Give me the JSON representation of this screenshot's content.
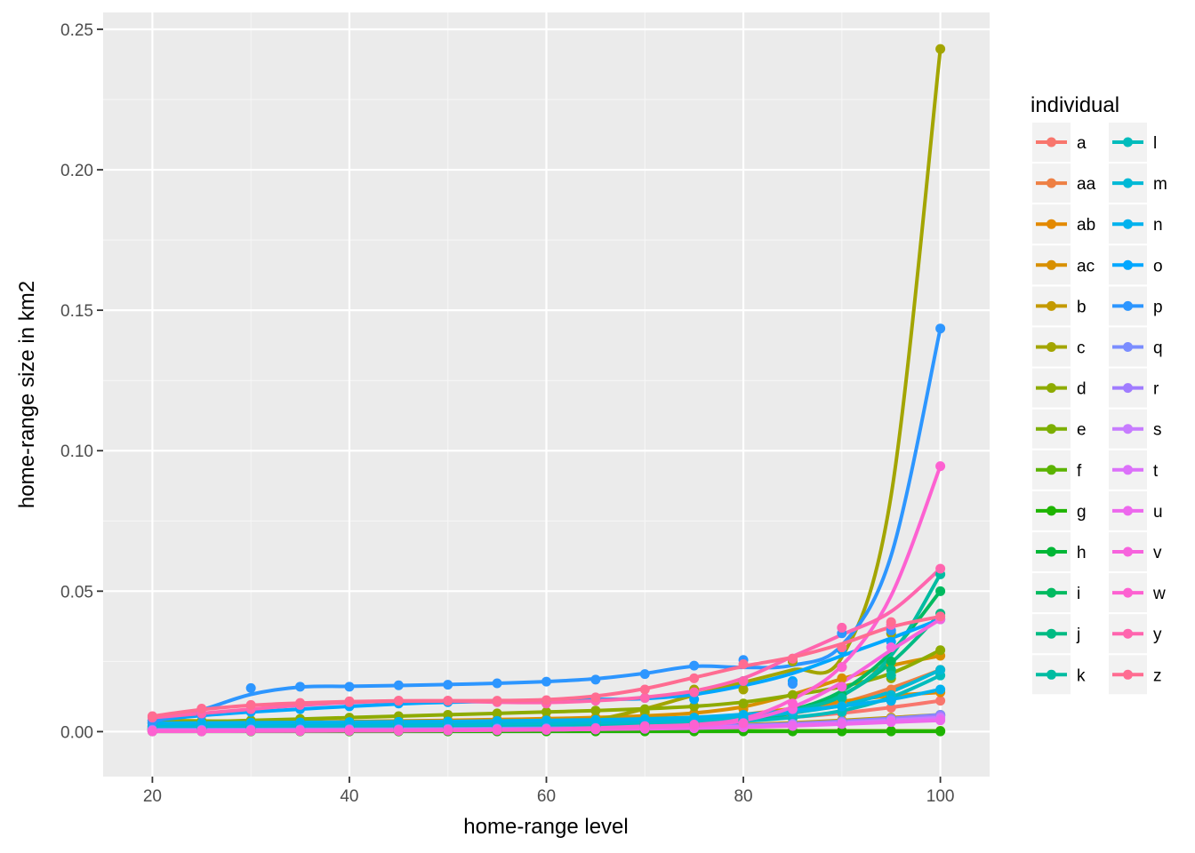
{
  "chart_data": {
    "type": "line",
    "subtype": "scatter with smoothed trend lines",
    "title": "",
    "xlabel": "home-range level",
    "ylabel": "home-range size in km2",
    "xlim": [
      15,
      105
    ],
    "ylim": [
      -0.016,
      0.256
    ],
    "x_ticks": [
      20,
      40,
      60,
      80,
      100
    ],
    "y_ticks": [
      0.0,
      0.05,
      0.1,
      0.15,
      0.2,
      0.25
    ],
    "x_tick_labels": [
      "20",
      "40",
      "60",
      "80",
      "100"
    ],
    "y_tick_labels": [
      "0.00",
      "0.05",
      "0.10",
      "0.15",
      "0.20",
      "0.25"
    ],
    "grid": true,
    "legend": {
      "title": "individual",
      "placement": "right",
      "columns": 2
    },
    "x": [
      20,
      25,
      30,
      35,
      40,
      45,
      50,
      55,
      60,
      65,
      70,
      75,
      80,
      85,
      90,
      95,
      100
    ],
    "series": [
      {
        "name": "a",
        "color": "#F8766D",
        "values": [
          0.0015,
          0.0016,
          0.0017,
          0.0018,
          0.0019,
          0.002,
          0.0021,
          0.0023,
          0.0025,
          0.0027,
          0.003,
          0.0034,
          0.004,
          0.005,
          0.0065,
          0.0085,
          0.011
        ]
      },
      {
        "name": "aa",
        "color": "#EE8044",
        "values": [
          0.001,
          0.0011,
          0.0012,
          0.0013,
          0.0014,
          0.0015,
          0.0016,
          0.0018,
          0.002,
          0.0022,
          0.0025,
          0.003,
          0.004,
          0.006,
          0.01,
          0.015,
          0.022
        ]
      },
      {
        "name": "ab",
        "color": "#E38900",
        "values": [
          0.002,
          0.0021,
          0.0022,
          0.0023,
          0.0024,
          0.0025,
          0.0026,
          0.0028,
          0.003,
          0.0033,
          0.0037,
          0.0045,
          0.006,
          0.008,
          0.011,
          0.013,
          0.014
        ]
      },
      {
        "name": "ac",
        "color": "#D89000",
        "values": [
          0.003,
          0.0031,
          0.0032,
          0.0034,
          0.0036,
          0.0038,
          0.004,
          0.0043,
          0.0046,
          0.005,
          0.0055,
          0.0065,
          0.008,
          0.013,
          0.019,
          0.024,
          0.027
        ]
      },
      {
        "name": "b",
        "color": "#C49A00",
        "values": [
          0.001,
          0.001,
          0.0011,
          0.0011,
          0.0012,
          0.0012,
          0.0013,
          0.0014,
          0.0015,
          0.0016,
          0.0018,
          0.002,
          0.0025,
          0.003,
          0.004,
          0.005,
          0.006
        ]
      },
      {
        "name": "c",
        "color": "#A3A500",
        "values": [
          0.004,
          0.0038,
          0.0036,
          0.0034,
          0.0032,
          0.003,
          0.0028,
          0.0028,
          0.003,
          0.0035,
          0.007,
          0.015,
          0.015,
          0.025,
          0.023,
          0.035,
          0.243
        ]
      },
      {
        "name": "d",
        "color": "#8EAB00",
        "values": [
          0.003,
          0.0035,
          0.004,
          0.0045,
          0.005,
          0.0055,
          0.006,
          0.0065,
          0.007,
          0.0075,
          0.008,
          0.009,
          0.01,
          0.013,
          0.016,
          0.019,
          0.029
        ]
      },
      {
        "name": "e",
        "color": "#7CAE00",
        "values": [
          0.0003,
          0.0003,
          0.0003,
          0.0003,
          0.0003,
          0.0003,
          0.0003,
          0.0003,
          0.0003,
          0.0003,
          0.0003,
          0.0003,
          0.0003,
          0.0003,
          0.0003,
          0.0003,
          0.0003
        ]
      },
      {
        "name": "f",
        "color": "#5BB300",
        "values": [
          0.0002,
          0.0002,
          0.0002,
          0.0002,
          0.0002,
          0.0002,
          0.0002,
          0.0002,
          0.0002,
          0.0002,
          0.0002,
          0.0002,
          0.0002,
          0.0002,
          0.0002,
          0.0002,
          0.0002
        ]
      },
      {
        "name": "g",
        "color": "#1EB400",
        "values": [
          0.0001,
          0.0001,
          0.0001,
          0.0001,
          0.0001,
          0.0001,
          0.0001,
          0.0001,
          0.0001,
          0.0001,
          0.0001,
          0.0001,
          0.0001,
          0.0001,
          0.0001,
          0.0001,
          0.0001
        ]
      },
      {
        "name": "h",
        "color": "#00B636",
        "values": [
          0.0006,
          0.0006,
          0.0007,
          0.0007,
          0.0008,
          0.0008,
          0.0009,
          0.001,
          0.0011,
          0.0012,
          0.0014,
          0.0016,
          0.002,
          0.0026,
          0.0034,
          0.0044,
          0.0058
        ]
      },
      {
        "name": "i",
        "color": "#00BA60",
        "values": [
          0.0012,
          0.0013,
          0.0014,
          0.0015,
          0.0016,
          0.0017,
          0.0018,
          0.002,
          0.0022,
          0.0024,
          0.0027,
          0.0032,
          0.004,
          0.007,
          0.013,
          0.025,
          0.05
        ]
      },
      {
        "name": "j",
        "color": "#00BB83",
        "values": [
          0.0008,
          0.0009,
          0.001,
          0.0011,
          0.0012,
          0.0013,
          0.0014,
          0.0015,
          0.0017,
          0.0019,
          0.0022,
          0.0026,
          0.0032,
          0.006,
          0.012,
          0.022,
          0.042
        ]
      },
      {
        "name": "k",
        "color": "#00BCA1",
        "values": [
          0.0015,
          0.0016,
          0.0017,
          0.0018,
          0.0019,
          0.002,
          0.0021,
          0.0023,
          0.0025,
          0.0028,
          0.0032,
          0.0038,
          0.0045,
          0.007,
          0.012,
          0.02,
          0.056
        ]
      },
      {
        "name": "l",
        "color": "#00BCBC",
        "values": [
          0.001,
          0.0011,
          0.0012,
          0.0013,
          0.0014,
          0.0015,
          0.0016,
          0.0018,
          0.002,
          0.0022,
          0.0025,
          0.003,
          0.0036,
          0.0048,
          0.007,
          0.011,
          0.02
        ]
      },
      {
        "name": "m",
        "color": "#00B9D6",
        "values": [
          0.002,
          0.0021,
          0.0022,
          0.0023,
          0.0024,
          0.0025,
          0.0026,
          0.0028,
          0.003,
          0.0032,
          0.0035,
          0.004,
          0.005,
          0.0065,
          0.009,
          0.013,
          0.022
        ]
      },
      {
        "name": "n",
        "color": "#00B2EE",
        "values": [
          0.003,
          0.0031,
          0.0032,
          0.0033,
          0.0034,
          0.0035,
          0.0036,
          0.0038,
          0.004,
          0.0042,
          0.0045,
          0.005,
          0.006,
          0.0075,
          0.009,
          0.011,
          0.015
        ]
      },
      {
        "name": "o",
        "color": "#00A7FF",
        "values": [
          0.004,
          0.006,
          0.007,
          0.008,
          0.009,
          0.01,
          0.0105,
          0.0108,
          0.011,
          0.0115,
          0.012,
          0.0115,
          0.018,
          0.018,
          0.029,
          0.032,
          0.04
        ]
      },
      {
        "name": "p",
        "color": "#2D96FF",
        "values": [
          0.0035,
          0.006,
          0.0155,
          0.016,
          0.016,
          0.0165,
          0.0167,
          0.0172,
          0.0178,
          0.0185,
          0.0205,
          0.0235,
          0.0255,
          0.017,
          0.035,
          0.036,
          0.1435
        ]
      },
      {
        "name": "q",
        "color": "#7B8DFF",
        "values": [
          0.0007,
          0.0007,
          0.0008,
          0.0008,
          0.0009,
          0.0009,
          0.001,
          0.0011,
          0.0012,
          0.0013,
          0.0015,
          0.0018,
          0.0022,
          0.0028,
          0.0036,
          0.0046,
          0.006
        ]
      },
      {
        "name": "r",
        "color": "#A07CFF",
        "values": [
          0.0005,
          0.0005,
          0.0006,
          0.0006,
          0.0007,
          0.0007,
          0.0008,
          0.0009,
          0.001,
          0.0011,
          0.0013,
          0.0016,
          0.002,
          0.0026,
          0.0034,
          0.0044,
          0.0055
        ]
      },
      {
        "name": "s",
        "color": "#C77CFF",
        "values": [
          0.0004,
          0.0004,
          0.0005,
          0.0005,
          0.0006,
          0.0006,
          0.0007,
          0.0008,
          0.0009,
          0.001,
          0.0012,
          0.0014,
          0.0018,
          0.0024,
          0.0031,
          0.004,
          0.005
        ]
      },
      {
        "name": "t",
        "color": "#DC71FA",
        "values": [
          0.0003,
          0.0003,
          0.0004,
          0.0004,
          0.0005,
          0.0005,
          0.0006,
          0.0007,
          0.0008,
          0.0009,
          0.0011,
          0.0013,
          0.0016,
          0.0022,
          0.0029,
          0.0037,
          0.0045
        ]
      },
      {
        "name": "u",
        "color": "#ED68ED",
        "values": [
          0.0002,
          0.0002,
          0.0003,
          0.0003,
          0.0004,
          0.0004,
          0.0005,
          0.0006,
          0.0007,
          0.0008,
          0.001,
          0.0012,
          0.0015,
          0.002,
          0.0027,
          0.0034,
          0.004
        ]
      },
      {
        "name": "v",
        "color": "#F763DD",
        "values": [
          0.0001,
          0.0001,
          0.0002,
          0.0002,
          0.0003,
          0.0003,
          0.0004,
          0.0005,
          0.0006,
          0.0008,
          0.0012,
          0.0018,
          0.003,
          0.008,
          0.016,
          0.03,
          0.04
        ]
      },
      {
        "name": "w",
        "color": "#FD61D1",
        "values": [
          0.0002,
          0.0002,
          0.0003,
          0.0003,
          0.0004,
          0.0004,
          0.0005,
          0.0006,
          0.0008,
          0.0012,
          0.002,
          0.0025,
          0.003,
          0.01,
          0.023,
          0.038,
          0.0945
        ]
      },
      {
        "name": "y",
        "color": "#FF65AE",
        "values": [
          0.005,
          0.0065,
          0.008,
          0.0095,
          0.0105,
          0.011,
          0.011,
          0.0105,
          0.01,
          0.011,
          0.012,
          0.014,
          0.018,
          0.026,
          0.037,
          0.038,
          0.058
        ]
      },
      {
        "name": "z",
        "color": "#FF6C91",
        "values": [
          0.0055,
          0.0082,
          0.0095,
          0.0102,
          0.0108,
          0.011,
          0.011,
          0.011,
          0.0112,
          0.0122,
          0.015,
          0.019,
          0.024,
          0.026,
          0.03,
          0.039,
          0.041
        ]
      }
    ]
  }
}
